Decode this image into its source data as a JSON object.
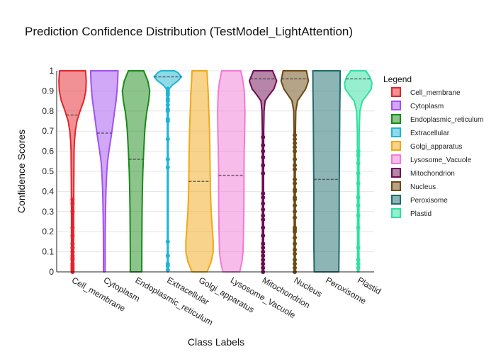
{
  "chart_data": {
    "type": "violin",
    "title": "Prediction Confidence Distribution (TestModel_LightAttention)",
    "xlabel": "Class Labels",
    "ylabel": "Confidence Scores",
    "ylim": [
      0,
      1
    ],
    "yticks": [
      0,
      0.1,
      0.2,
      0.3,
      0.4,
      0.5,
      0.6,
      0.7,
      0.8,
      0.9,
      1
    ],
    "ytick_labels": [
      "0",
      "0.1",
      "0.2",
      "0.3",
      "0.4",
      "0.5",
      "0.6",
      "0.7",
      "0.8",
      "0.9",
      "1"
    ],
    "grid": true,
    "legend_title": "Legend",
    "legend_position": "right",
    "categories": [
      "Cell_membrane",
      "Cytoplasm",
      "Endoplasmic_reticulum",
      "Extracellular",
      "Golgi_apparatus",
      "Lysosome_Vacuole",
      "Mitochondrion",
      "Nucleus",
      "Peroxisome",
      "Plastid"
    ],
    "series": [
      {
        "name": "Cell_membrane",
        "color": "#e3242b",
        "mean": 0.78,
        "density": [
          [
            0,
            0.08
          ],
          [
            0.1,
            0.08
          ],
          [
            0.2,
            0.08
          ],
          [
            0.3,
            0.08
          ],
          [
            0.4,
            0.09
          ],
          [
            0.5,
            0.1
          ],
          [
            0.6,
            0.11
          ],
          [
            0.65,
            0.14
          ],
          [
            0.7,
            0.2
          ],
          [
            0.75,
            0.32
          ],
          [
            0.8,
            0.55
          ],
          [
            0.85,
            0.82
          ],
          [
            0.9,
            0.97
          ],
          [
            0.95,
            1.0
          ],
          [
            1,
            0.95
          ]
        ],
        "points": [
          0.0,
          0.01,
          0.02,
          0.03,
          0.04,
          0.06,
          0.07,
          0.08,
          0.1,
          0.12,
          0.14,
          0.18,
          0.22,
          0.3,
          0.34,
          0.36
        ]
      },
      {
        "name": "Cytoplasm",
        "color": "#a251f0",
        "mean": 0.69,
        "density": [
          [
            0,
            0.06
          ],
          [
            0.1,
            0.06
          ],
          [
            0.2,
            0.07
          ],
          [
            0.3,
            0.09
          ],
          [
            0.4,
            0.12
          ],
          [
            0.5,
            0.18
          ],
          [
            0.55,
            0.24
          ],
          [
            0.6,
            0.34
          ],
          [
            0.65,
            0.45
          ],
          [
            0.7,
            0.56
          ],
          [
            0.75,
            0.66
          ],
          [
            0.8,
            0.76
          ],
          [
            0.85,
            0.86
          ],
          [
            0.9,
            0.93
          ],
          [
            0.95,
            0.98
          ],
          [
            1,
            1.0
          ]
        ],
        "points": []
      },
      {
        "name": "Endoplasmic_reticulum",
        "color": "#1a8a1a",
        "mean": 0.56,
        "density": [
          [
            0,
            0.42
          ],
          [
            0.1,
            0.42
          ],
          [
            0.2,
            0.43
          ],
          [
            0.3,
            0.44
          ],
          [
            0.4,
            0.46
          ],
          [
            0.5,
            0.5
          ],
          [
            0.6,
            0.56
          ],
          [
            0.7,
            0.64
          ],
          [
            0.75,
            0.7
          ],
          [
            0.8,
            0.8
          ],
          [
            0.85,
            0.93
          ],
          [
            0.9,
            1.0
          ],
          [
            0.95,
            0.86
          ],
          [
            1,
            0.56
          ]
        ],
        "points": []
      },
      {
        "name": "Extracellular",
        "color": "#1fb5d4",
        "mean": 0.97,
        "density": [
          [
            0,
            0.03
          ],
          [
            0.1,
            0.03
          ],
          [
            0.2,
            0.03
          ],
          [
            0.3,
            0.03
          ],
          [
            0.4,
            0.03
          ],
          [
            0.5,
            0.03
          ],
          [
            0.6,
            0.03
          ],
          [
            0.7,
            0.03
          ],
          [
            0.8,
            0.04
          ],
          [
            0.85,
            0.05
          ],
          [
            0.88,
            0.07
          ],
          [
            0.91,
            0.1
          ],
          [
            0.93,
            0.35
          ],
          [
            0.95,
            0.75
          ],
          [
            0.97,
            1.0
          ],
          [
            0.99,
            0.75
          ],
          [
            1,
            0.5
          ]
        ],
        "points": [
          0.01,
          0.03,
          0.04,
          0.08,
          0.15,
          0.52,
          0.56,
          0.66,
          0.75,
          0.76,
          0.8,
          0.81,
          0.83,
          0.85,
          0.86,
          0.88,
          0.89,
          0.9,
          0.91
        ]
      },
      {
        "name": "Golgi_apparatus",
        "color": "#f0a818",
        "mean": 0.45,
        "density": [
          [
            0,
            0.55
          ],
          [
            0.05,
            0.85
          ],
          [
            0.1,
            1.0
          ],
          [
            0.15,
            1.0
          ],
          [
            0.2,
            0.95
          ],
          [
            0.3,
            0.85
          ],
          [
            0.4,
            0.8
          ],
          [
            0.5,
            0.78
          ],
          [
            0.6,
            0.76
          ],
          [
            0.7,
            0.73
          ],
          [
            0.8,
            0.68
          ],
          [
            0.9,
            0.63
          ],
          [
            0.95,
            0.58
          ],
          [
            1,
            0.55
          ]
        ],
        "points": []
      },
      {
        "name": "Lysosome_Vacuole",
        "color": "#f27ad6",
        "mean": 0.48,
        "density": [
          [
            0,
            0.62
          ],
          [
            0.05,
            0.78
          ],
          [
            0.1,
            0.86
          ],
          [
            0.2,
            0.9
          ],
          [
            0.3,
            0.92
          ],
          [
            0.4,
            0.93
          ],
          [
            0.5,
            0.93
          ],
          [
            0.6,
            0.95
          ],
          [
            0.7,
            0.98
          ],
          [
            0.8,
            1.0
          ],
          [
            0.9,
            0.95
          ],
          [
            0.95,
            0.85
          ],
          [
            1,
            0.7
          ]
        ],
        "points": []
      },
      {
        "name": "Mitochondrion",
        "color": "#6e0b52",
        "mean": 0.96,
        "density": [
          [
            0,
            0.04
          ],
          [
            0.1,
            0.04
          ],
          [
            0.2,
            0.04
          ],
          [
            0.3,
            0.04
          ],
          [
            0.4,
            0.04
          ],
          [
            0.5,
            0.04
          ],
          [
            0.6,
            0.04
          ],
          [
            0.7,
            0.05
          ],
          [
            0.8,
            0.08
          ],
          [
            0.85,
            0.15
          ],
          [
            0.88,
            0.45
          ],
          [
            0.91,
            0.8
          ],
          [
            0.95,
            1.0
          ],
          [
            1,
            0.7
          ]
        ],
        "points": [
          0.0,
          0.02,
          0.04,
          0.06,
          0.08,
          0.1,
          0.12,
          0.14,
          0.18,
          0.22,
          0.26,
          0.28,
          0.31,
          0.34,
          0.37,
          0.39,
          0.49,
          0.53,
          0.57,
          0.6,
          0.63,
          0.67
        ]
      },
      {
        "name": "Nucleus",
        "color": "#6b4a12",
        "mean": 0.96,
        "density": [
          [
            0,
            0.04
          ],
          [
            0.1,
            0.04
          ],
          [
            0.2,
            0.04
          ],
          [
            0.3,
            0.04
          ],
          [
            0.4,
            0.04
          ],
          [
            0.5,
            0.04
          ],
          [
            0.6,
            0.04
          ],
          [
            0.7,
            0.05
          ],
          [
            0.8,
            0.08
          ],
          [
            0.85,
            0.2
          ],
          [
            0.88,
            0.5
          ],
          [
            0.91,
            0.8
          ],
          [
            0.95,
            1.0
          ],
          [
            1,
            0.85
          ]
        ],
        "points": [
          0.0,
          0.02,
          0.04,
          0.06,
          0.09,
          0.11,
          0.14,
          0.17,
          0.2,
          0.21,
          0.22,
          0.27,
          0.3,
          0.33,
          0.36,
          0.37,
          0.4,
          0.41,
          0.44,
          0.46,
          0.51,
          0.53,
          0.56,
          0.6,
          0.62,
          0.64,
          0.66,
          0.68
        ]
      },
      {
        "name": "Peroxisome",
        "color": "#1e6b6b",
        "mean": 0.46,
        "density": [
          [
            0,
            0.9
          ],
          [
            0.1,
            0.92
          ],
          [
            0.2,
            0.93
          ],
          [
            0.3,
            0.93
          ],
          [
            0.4,
            0.93
          ],
          [
            0.5,
            0.94
          ],
          [
            0.6,
            0.95
          ],
          [
            0.7,
            0.96
          ],
          [
            0.8,
            0.97
          ],
          [
            0.9,
            0.99
          ],
          [
            1,
            1.0
          ]
        ],
        "points": []
      },
      {
        "name": "Plastid",
        "color": "#2fe0a0",
        "mean": 0.96,
        "density": [
          [
            0,
            0.05
          ],
          [
            0.1,
            0.05
          ],
          [
            0.2,
            0.05
          ],
          [
            0.3,
            0.05
          ],
          [
            0.4,
            0.05
          ],
          [
            0.5,
            0.05
          ],
          [
            0.6,
            0.06
          ],
          [
            0.7,
            0.07
          ],
          [
            0.8,
            0.12
          ],
          [
            0.85,
            0.3
          ],
          [
            0.88,
            0.65
          ],
          [
            0.91,
            0.95
          ],
          [
            0.94,
            1.0
          ],
          [
            0.97,
            0.85
          ],
          [
            1,
            0.55
          ]
        ],
        "points": [
          0.02,
          0.04,
          0.06,
          0.12,
          0.22,
          0.28,
          0.33,
          0.37,
          0.44,
          0.49,
          0.54,
          0.58,
          0.6
        ]
      }
    ]
  }
}
